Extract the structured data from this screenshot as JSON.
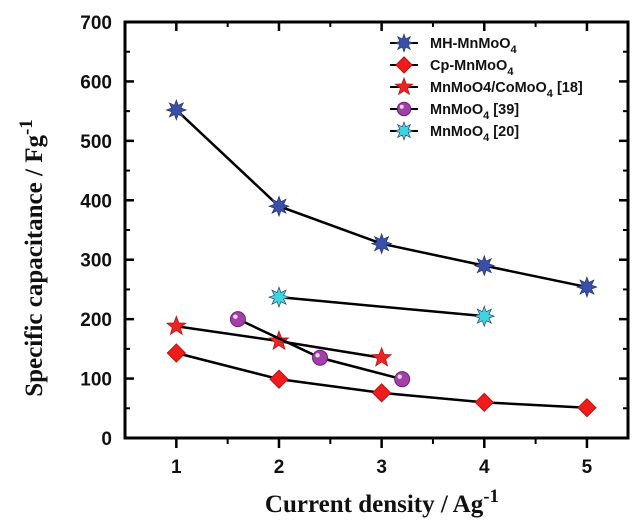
{
  "chart_data": {
    "type": "line",
    "xlabel": "Current density / Ag",
    "xlabel_sup": "-1",
    "ylabel": "Specific capacitance / Fg",
    "ylabel_sup": "-1",
    "xlim": [
      0.5,
      5.4
    ],
    "ylim": [
      0,
      700
    ],
    "xticks": [
      1,
      2,
      3,
      4,
      5
    ],
    "yticks": [
      0,
      100,
      200,
      300,
      400,
      500,
      600,
      700
    ],
    "grid": false,
    "legend": "top-right",
    "series": [
      {
        "name": "MH-MnMoO",
        "name_sub": "4",
        "name_suffix": "",
        "marker": "plus-star",
        "color": "#3a4fa8",
        "x": [
          1,
          2,
          3,
          4,
          5
        ],
        "y": [
          552,
          390,
          327,
          290,
          254
        ]
      },
      {
        "name": "Cp-MnMoO",
        "name_sub": "4",
        "name_suffix": "",
        "marker": "diamond",
        "color": "#ee1c1c",
        "x": [
          1,
          2,
          3,
          4,
          5
        ],
        "y": [
          143,
          99,
          76,
          60,
          51
        ]
      },
      {
        "name": "MnMoO4/CoMoO",
        "name_sub": "4",
        "name_suffix": " [18]",
        "marker": "star",
        "color": "#ee2424",
        "x": [
          1,
          2,
          3
        ],
        "y": [
          188,
          163,
          135
        ]
      },
      {
        "name": "MnMoO",
        "name_sub": "4",
        "name_suffix": " [39]",
        "marker": "circle",
        "color": "#a33fa8",
        "x": [
          1.6,
          2.4,
          3.2
        ],
        "y": [
          200,
          135,
          99
        ]
      },
      {
        "name": "MnMoO",
        "name_sub": "4",
        "name_suffix": " [20]",
        "marker": "plus-star",
        "color": "#40d4e0",
        "x": [
          2,
          4
        ],
        "y": [
          237,
          205
        ]
      }
    ]
  }
}
